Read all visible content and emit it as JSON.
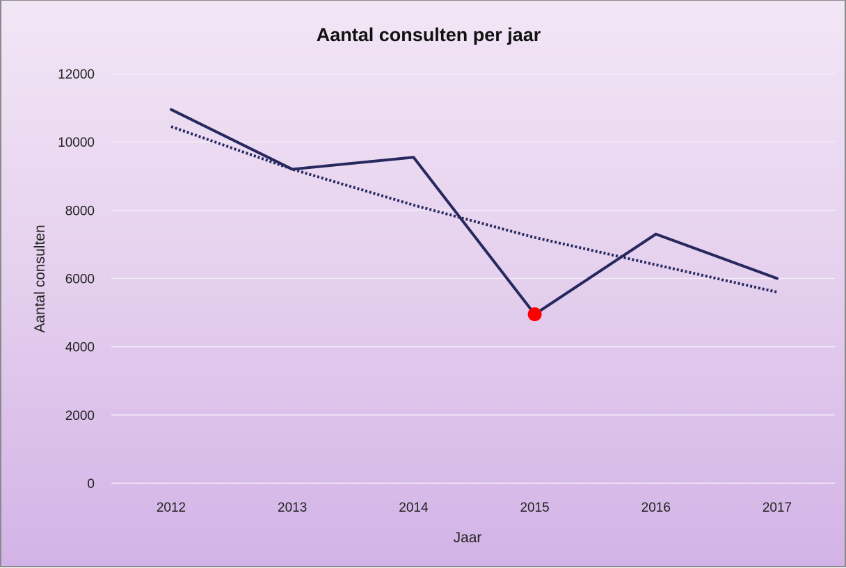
{
  "chart_data": {
    "type": "line",
    "title": "Aantal consulten per jaar",
    "xlabel": "Jaar",
    "ylabel": "Aantal consulten",
    "categories": [
      "2012",
      "2013",
      "2014",
      "2015",
      "2016",
      "2017"
    ],
    "ylim": [
      0,
      12000
    ],
    "yticks": [
      0,
      2000,
      4000,
      6000,
      8000,
      10000,
      12000
    ],
    "grid": true,
    "legend": "none",
    "series": [
      {
        "values": [
          10950,
          9200,
          9550,
          4950,
          7300,
          6000
        ],
        "color": "#26285e",
        "style": "solid"
      },
      {
        "values": [
          10450,
          9200,
          8150,
          7200,
          6400,
          5600
        ],
        "color": "#26285e",
        "style": "dotted"
      }
    ],
    "highlight": {
      "category": "2015",
      "value": 4950,
      "color": "#ff0000"
    }
  }
}
